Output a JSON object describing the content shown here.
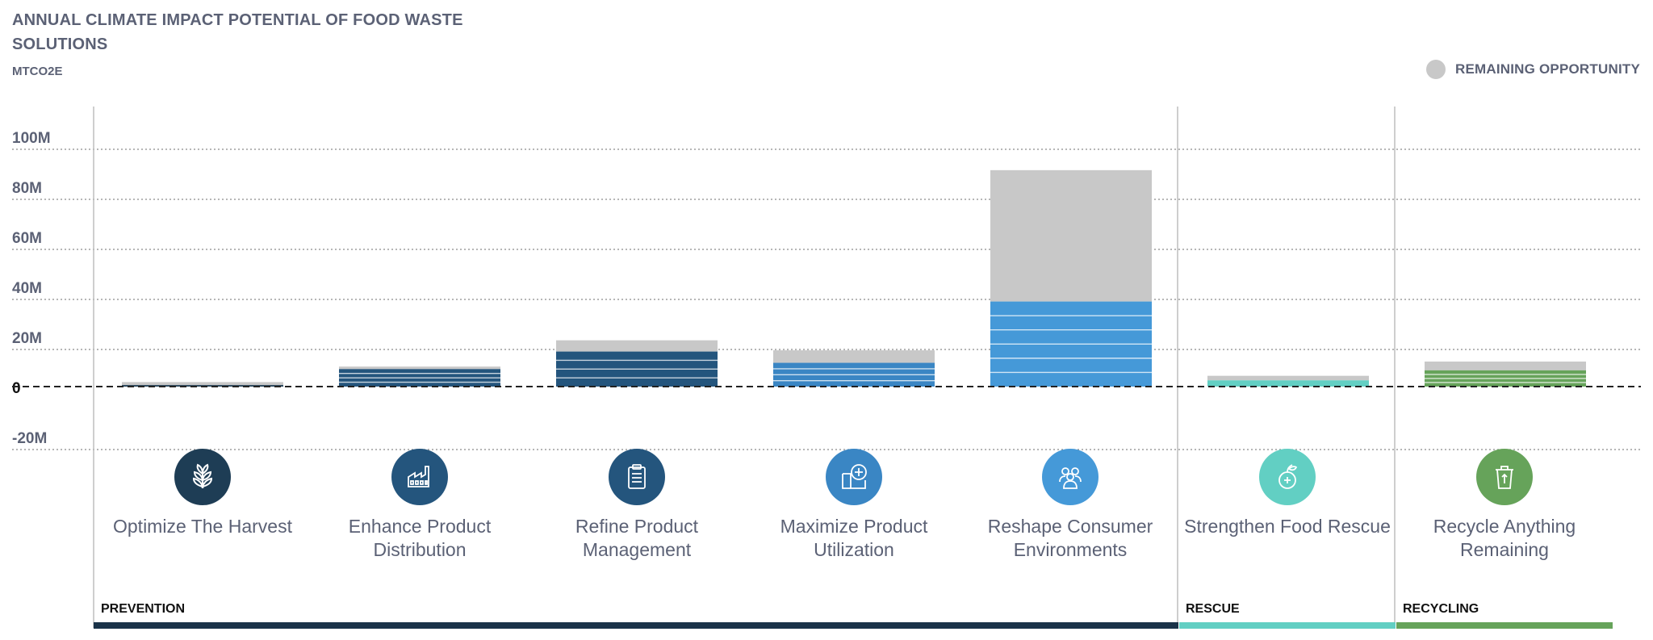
{
  "title": "ANNUAL CLIMATE IMPACT POTENTIAL OF FOOD WASTE SOLUTIONS",
  "unit": "MTCO2E",
  "legend": {
    "label": "REMAINING OPPORTUNITY",
    "color": "#c8c8c8"
  },
  "chart_data": {
    "type": "bar",
    "stacked": true,
    "title": "ANNUAL CLIMATE IMPACT POTENTIAL OF FOOD WASTE SOLUTIONS",
    "ylabel": "MTCO2E",
    "ylim": [
      -20000000,
      100000000
    ],
    "yticks": [
      "100M",
      "80M",
      "60M",
      "40M",
      "20M",
      "0",
      "-20M"
    ],
    "ytick_values": [
      100000000,
      80000000,
      60000000,
      40000000,
      20000000,
      0,
      -20000000
    ],
    "grid": "dotted",
    "legend_position": "top-right",
    "categories": [
      "Optimize The Harvest",
      "Enhance Product Distribution",
      "Refine Product Management",
      "Maximize Product Utilization",
      "Reshape Consumer Environments",
      "Strengthen Food Rescue",
      "Recycle Anything Remaining"
    ],
    "series": [
      {
        "values": [
          0.6,
          7.0,
          14.0,
          9.5,
          34.0,
          2.5,
          6.5
        ],
        "units": "millions",
        "colors": [
          "#1e3d55",
          "#24557d",
          "#24557d",
          "#3a86c4",
          "#4599d8",
          "#62cfc3",
          "#66a35a"
        ]
      },
      {
        "name": "REMAINING OPPORTUNITY",
        "values": [
          1.2,
          1.0,
          4.5,
          5.0,
          52.5,
          1.8,
          3.5
        ],
        "units": "millions",
        "color": "#c8c8c8"
      }
    ],
    "groups": [
      {
        "label": "PREVENTION",
        "categories": 5,
        "color": "#1a3349"
      },
      {
        "label": "RESCUE",
        "categories": 1,
        "color": "#62cfc3"
      },
      {
        "label": "RECYCLING",
        "categories": 1,
        "color": "#66a35a"
      }
    ]
  },
  "categories": [
    {
      "label": "Optimize The Harvest",
      "icon": "wheat-icon",
      "color": "#1e3d55"
    },
    {
      "label": "Enhance Product Distribution",
      "icon": "factory-icon",
      "color": "#24557d"
    },
    {
      "label": "Refine Product Management",
      "icon": "clipboard-icon",
      "color": "#24557d"
    },
    {
      "label": "Maximize Product Utilization",
      "icon": "square-plus-icon",
      "color": "#3a86c4"
    },
    {
      "label": "Reshape Consumer Environments",
      "icon": "people-icon",
      "color": "#4599d8"
    },
    {
      "label": "Strengthen Food Rescue",
      "icon": "apple-plus-icon",
      "color": "#62cfc3"
    },
    {
      "label": "Recycle Anything Remaining",
      "icon": "recycle-bin-icon",
      "color": "#66a35a"
    }
  ]
}
